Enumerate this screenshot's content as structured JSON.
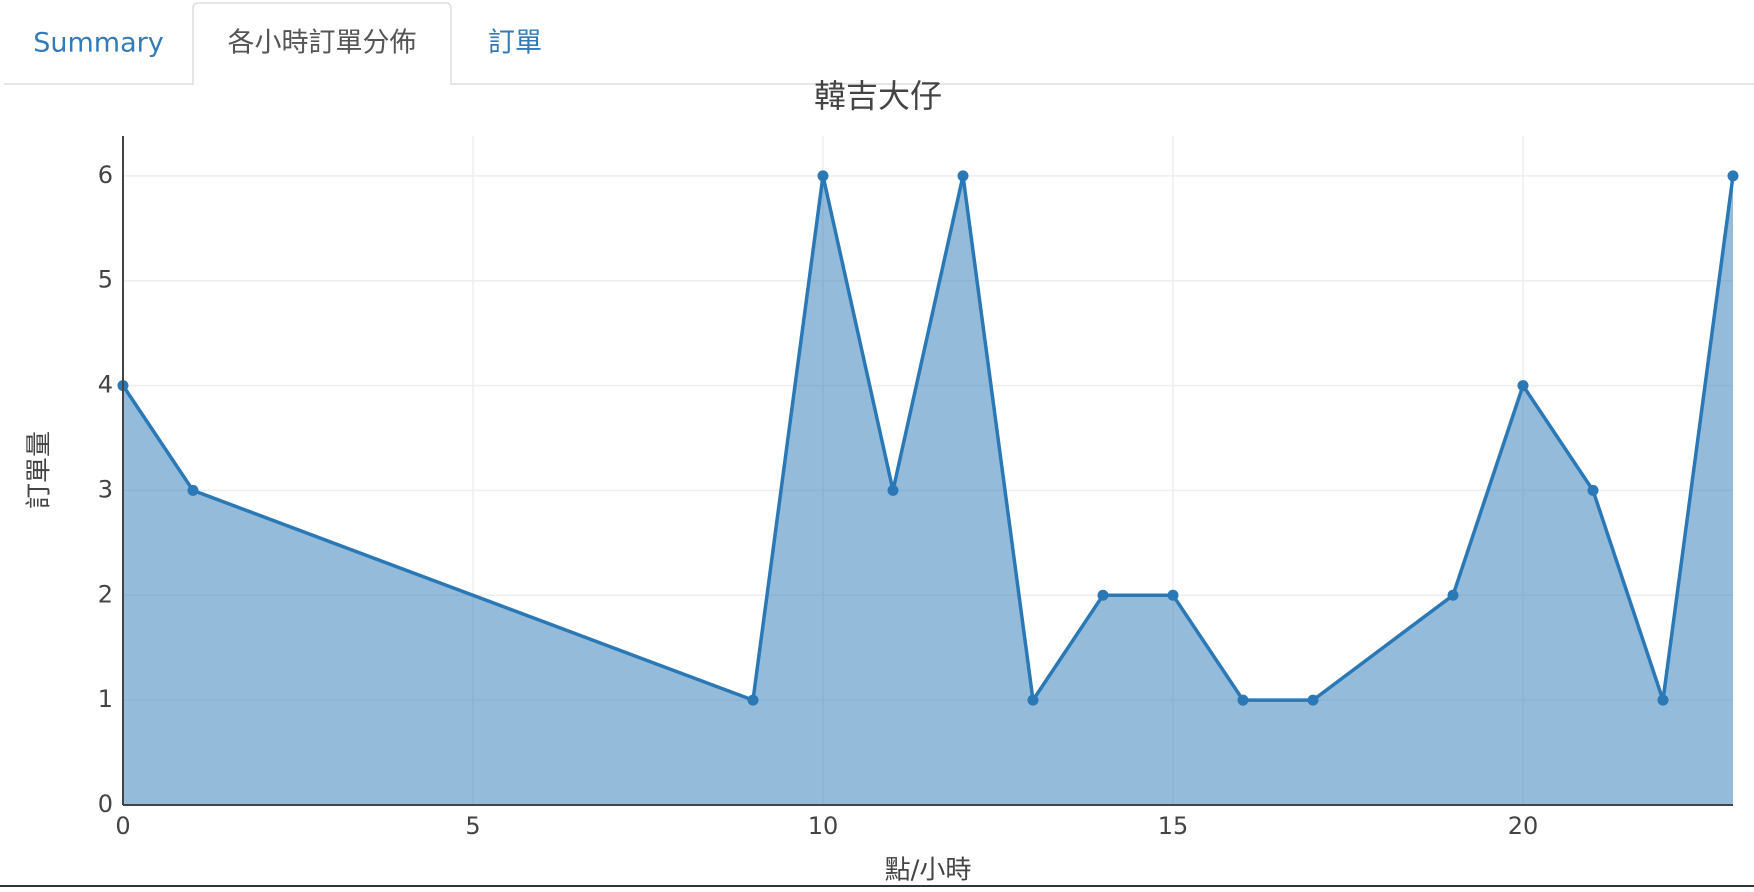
{
  "tabs": [
    {
      "label": "Summary"
    },
    {
      "label": "各小時訂單分佈"
    },
    {
      "label": "訂單"
    }
  ],
  "active_tab": 1,
  "chart_data": {
    "type": "area",
    "title": "韓吉大仔",
    "x_label": "點/小時",
    "y_label": "訂單量",
    "x": [
      0,
      1,
      9,
      10,
      11,
      12,
      13,
      14,
      15,
      16,
      17,
      19,
      20,
      21,
      22,
      23
    ],
    "series": [
      {
        "color": "#2a78b5",
        "values": [
          4,
          3,
          1,
          6,
          3,
          6,
          1,
          2,
          2,
          1,
          1,
          2,
          4,
          3,
          1,
          6
        ]
      }
    ],
    "xlim": [
      0,
      23
    ],
    "xticks": [
      0,
      5,
      10,
      15,
      20
    ],
    "ylim": [
      0,
      6.38
    ],
    "yticks": [
      0,
      1,
      2,
      3,
      4,
      5,
      6
    ],
    "grid": true
  }
}
